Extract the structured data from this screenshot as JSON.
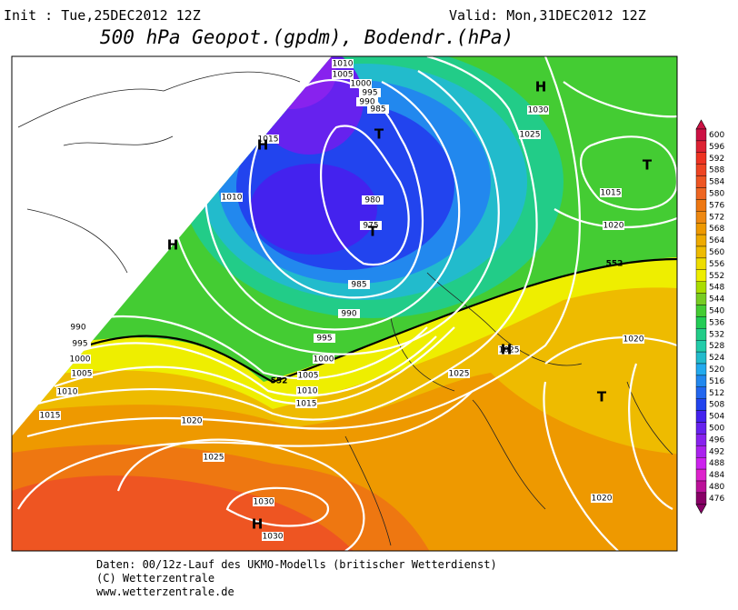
{
  "header": {
    "init": "Init : Tue,25DEC2012 12Z",
    "valid": "Valid: Mon,31DEC2012 12Z",
    "title": "500 hPa Geopot.(gpdm), Bodendr.(hPa)"
  },
  "footer": [
    "Daten: 00/12z-Lauf des UKMO-Modells (britischer Wetterdienst)",
    "(C) Wetterzentrale",
    "www.wetterzentrale.de"
  ],
  "colorbar": {
    "levels": [
      600,
      596,
      592,
      588,
      584,
      580,
      576,
      572,
      568,
      564,
      560,
      556,
      552,
      548,
      544,
      540,
      536,
      532,
      528,
      524,
      520,
      516,
      512,
      508,
      504,
      500,
      496,
      492,
      488,
      484,
      480,
      476
    ],
    "colors": [
      "#cc1144",
      "#dd2233",
      "#ee3322",
      "#ee4422",
      "#ee5522",
      "#ee6622",
      "#ee7711",
      "#ee8811",
      "#ee9900",
      "#eeaa00",
      "#eebb00",
      "#eedd00",
      "#eeee00",
      "#aadd00",
      "#77cc22",
      "#44cc33",
      "#22cc55",
      "#22cc88",
      "#22ccaa",
      "#22bbcc",
      "#22aaee",
      "#2288ee",
      "#2266ee",
      "#2244ee",
      "#4422ee",
      "#6622ee",
      "#8822ee",
      "#aa22ee",
      "#cc22ee",
      "#dd22cc",
      "#bb1199",
      "#880066"
    ]
  },
  "isobar_labels": [
    1010,
    1005,
    1000,
    995,
    990,
    985,
    1015,
    1010,
    980,
    975,
    985,
    990,
    995,
    1000,
    1005,
    1010,
    1015,
    990,
    995,
    1000,
    1005,
    1010,
    1015,
    1020,
    1025,
    1030,
    1030,
    1025,
    1030,
    1025,
    1015,
    1020,
    1020,
    1020,
    1025
  ],
  "contour_labels": [
    552,
    552
  ],
  "centers": [
    "H",
    "H",
    "H",
    "H",
    "H",
    "T",
    "T",
    "T",
    "T"
  ]
}
